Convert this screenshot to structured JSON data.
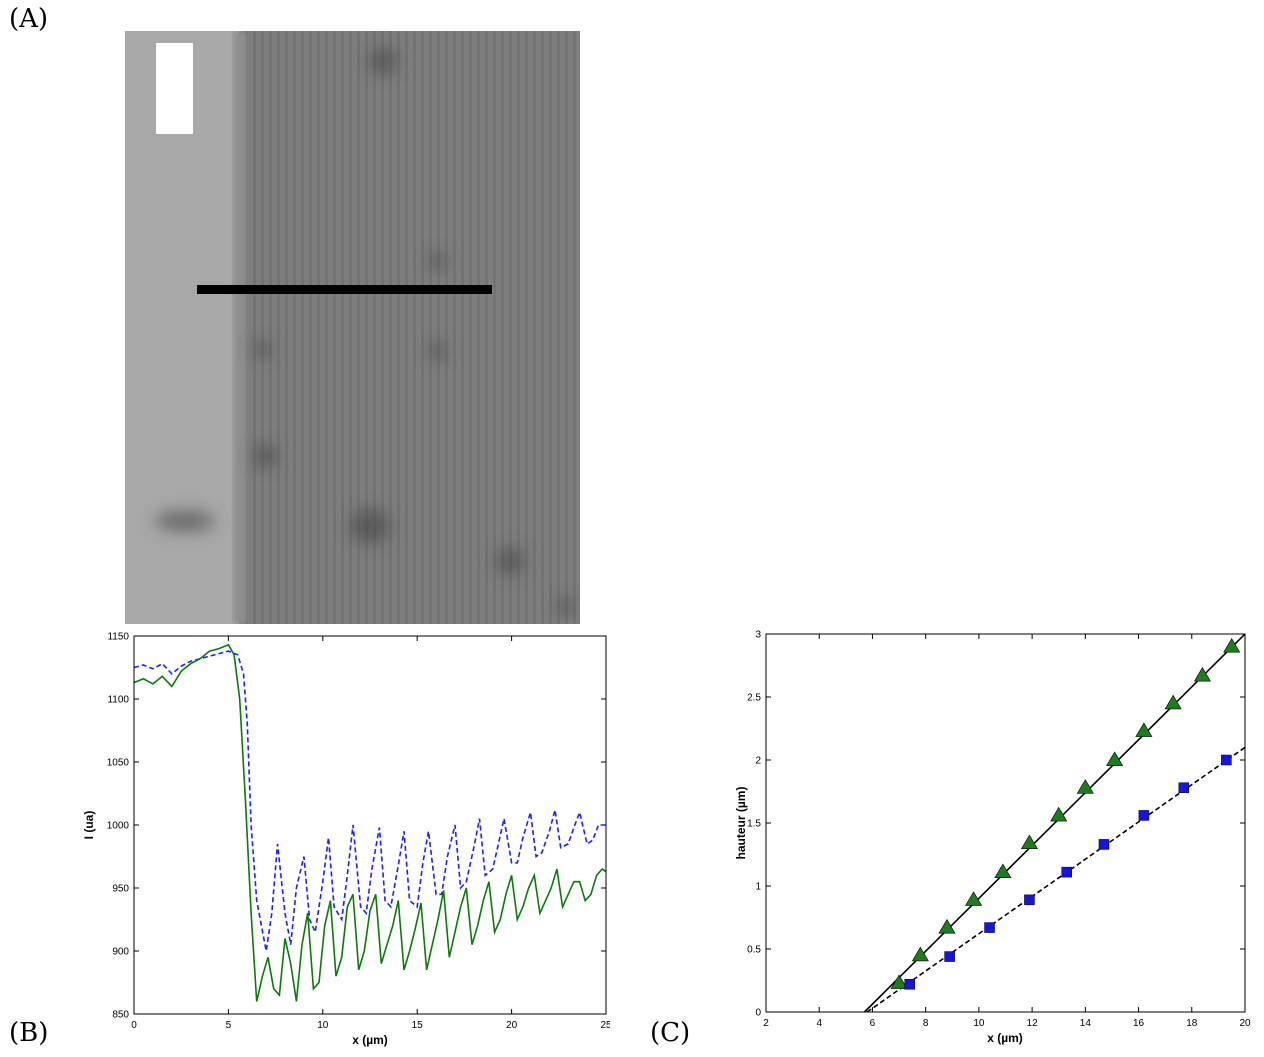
{
  "panels": {
    "a_label": "(A)",
    "b_label": "(B)",
    "c_label": "(C)"
  },
  "colors": {
    "dashed_series": "#1f1fff",
    "solid_series": "#0a7a0a",
    "triangle_marker": "#1a7f1a",
    "square_marker": "#1414e6",
    "fit_line": "#000000",
    "image_left_band": "#a8a8a8",
    "image_right_band": "#7e7e7e"
  },
  "chart_data": [
    {
      "type": "line",
      "panel": "B",
      "xlabel": "x (µm)",
      "ylabel": "I (ua)",
      "xlim": [
        0,
        25
      ],
      "ylim": [
        850,
        1150
      ],
      "xticks": [
        0,
        5,
        10,
        15,
        20,
        25
      ],
      "yticks": [
        850,
        900,
        950,
        1000,
        1050,
        1100,
        1150
      ],
      "grid": false,
      "series": [
        {
          "style": "dashed",
          "x": [
            0,
            0.5,
            1,
            1.5,
            2,
            2.5,
            3,
            3.5,
            4,
            4.5,
            5,
            5.5,
            5.8,
            6,
            6.2,
            6.5,
            7,
            7.3,
            7.6,
            8,
            8.3,
            8.6,
            9,
            9.3,
            9.6,
            10,
            10.3,
            10.6,
            11,
            11.3,
            11.6,
            12,
            12.3,
            12.6,
            13,
            13.3,
            13.6,
            14,
            14.3,
            14.6,
            15,
            15.3,
            15.6,
            16,
            16.3,
            16.6,
            17,
            17.3,
            17.6,
            18,
            18.3,
            18.6,
            19,
            19.3,
            19.6,
            20,
            20.3,
            20.6,
            21,
            21.3,
            21.6,
            22,
            22.3,
            22.6,
            23,
            23.3,
            23.6,
            24,
            24.3,
            24.6,
            25
          ],
          "y": [
            1125,
            1127,
            1124,
            1128,
            1120,
            1126,
            1130,
            1132,
            1134,
            1136,
            1138,
            1135,
            1120,
            1080,
            1000,
            940,
            900,
            930,
            985,
            930,
            905,
            950,
            975,
            925,
            915,
            955,
            990,
            935,
            925,
            960,
            1000,
            935,
            930,
            965,
            998,
            940,
            935,
            968,
            995,
            940,
            935,
            970,
            995,
            945,
            945,
            975,
            1000,
            950,
            955,
            982,
            1005,
            960,
            965,
            985,
            1005,
            970,
            970,
            990,
            1010,
            975,
            978,
            995,
            1012,
            982,
            985,
            998,
            1010,
            985,
            988,
            1000,
            1000
          ]
        },
        {
          "style": "solid",
          "x": [
            0,
            0.5,
            1,
            1.5,
            2,
            2.5,
            3,
            3.5,
            4,
            4.5,
            5,
            5.3,
            5.6,
            5.9,
            6.2,
            6.5,
            6.8,
            7.1,
            7.4,
            7.7,
            8,
            8.3,
            8.6,
            8.9,
            9.2,
            9.5,
            9.8,
            10.1,
            10.4,
            10.7,
            11,
            11.3,
            11.6,
            11.9,
            12.2,
            12.5,
            12.8,
            13.1,
            13.4,
            13.7,
            14,
            14.3,
            14.6,
            14.9,
            15.2,
            15.5,
            15.8,
            16.1,
            16.4,
            16.7,
            17,
            17.3,
            17.6,
            17.9,
            18.2,
            18.5,
            18.8,
            19.1,
            19.4,
            19.7,
            20,
            20.3,
            20.6,
            20.9,
            21.2,
            21.5,
            21.8,
            22.1,
            22.4,
            22.7,
            23,
            23.3,
            23.6,
            23.9,
            24.2,
            24.5,
            24.8,
            25
          ],
          "y": [
            1113,
            1116,
            1112,
            1118,
            1110,
            1122,
            1128,
            1132,
            1138,
            1140,
            1143,
            1135,
            1100,
            1020,
            930,
            860,
            880,
            895,
            870,
            865,
            910,
            890,
            860,
            905,
            930,
            870,
            875,
            920,
            940,
            880,
            895,
            935,
            945,
            885,
            900,
            932,
            945,
            890,
            905,
            920,
            940,
            885,
            900,
            918,
            938,
            885,
            905,
            925,
            948,
            895,
            915,
            935,
            950,
            905,
            920,
            940,
            955,
            915,
            925,
            945,
            960,
            925,
            935,
            950,
            960,
            930,
            940,
            950,
            965,
            935,
            945,
            955,
            955,
            940,
            945,
            960,
            965,
            963
          ]
        }
      ]
    },
    {
      "type": "scatter",
      "panel": "C",
      "xlabel": "x (µm)",
      "ylabel": "hauteur (µm)",
      "xlim": [
        2,
        20
      ],
      "ylim": [
        0,
        3
      ],
      "xticks": [
        2,
        4,
        6,
        8,
        10,
        12,
        14,
        16,
        18,
        20
      ],
      "yticks": [
        0,
        0.5,
        1,
        1.5,
        2,
        2.5,
        3
      ],
      "grid": false,
      "series": [
        {
          "marker": "triangle",
          "x": [
            7.0,
            7.8,
            8.8,
            9.8,
            10.9,
            11.9,
            13.0,
            14.0,
            15.1,
            16.2,
            17.3,
            18.4,
            19.5
          ],
          "y": [
            0.23,
            0.45,
            0.67,
            0.89,
            1.11,
            1.34,
            1.56,
            1.78,
            2.0,
            2.23,
            2.45,
            2.67,
            2.9
          ]
        },
        {
          "marker": "square",
          "x": [
            7.4,
            8.9,
            10.4,
            11.9,
            13.3,
            14.7,
            16.2,
            17.7,
            19.3
          ],
          "y": [
            0.22,
            0.44,
            0.67,
            0.89,
            1.11,
            1.33,
            1.56,
            1.78,
            2.0
          ]
        }
      ],
      "fits": [
        {
          "style": "solid",
          "x": [
            5.7,
            20
          ],
          "y": [
            0,
            3.0
          ]
        },
        {
          "style": "dashed",
          "x": [
            5.8,
            20
          ],
          "y": [
            0,
            2.1
          ]
        }
      ]
    }
  ]
}
